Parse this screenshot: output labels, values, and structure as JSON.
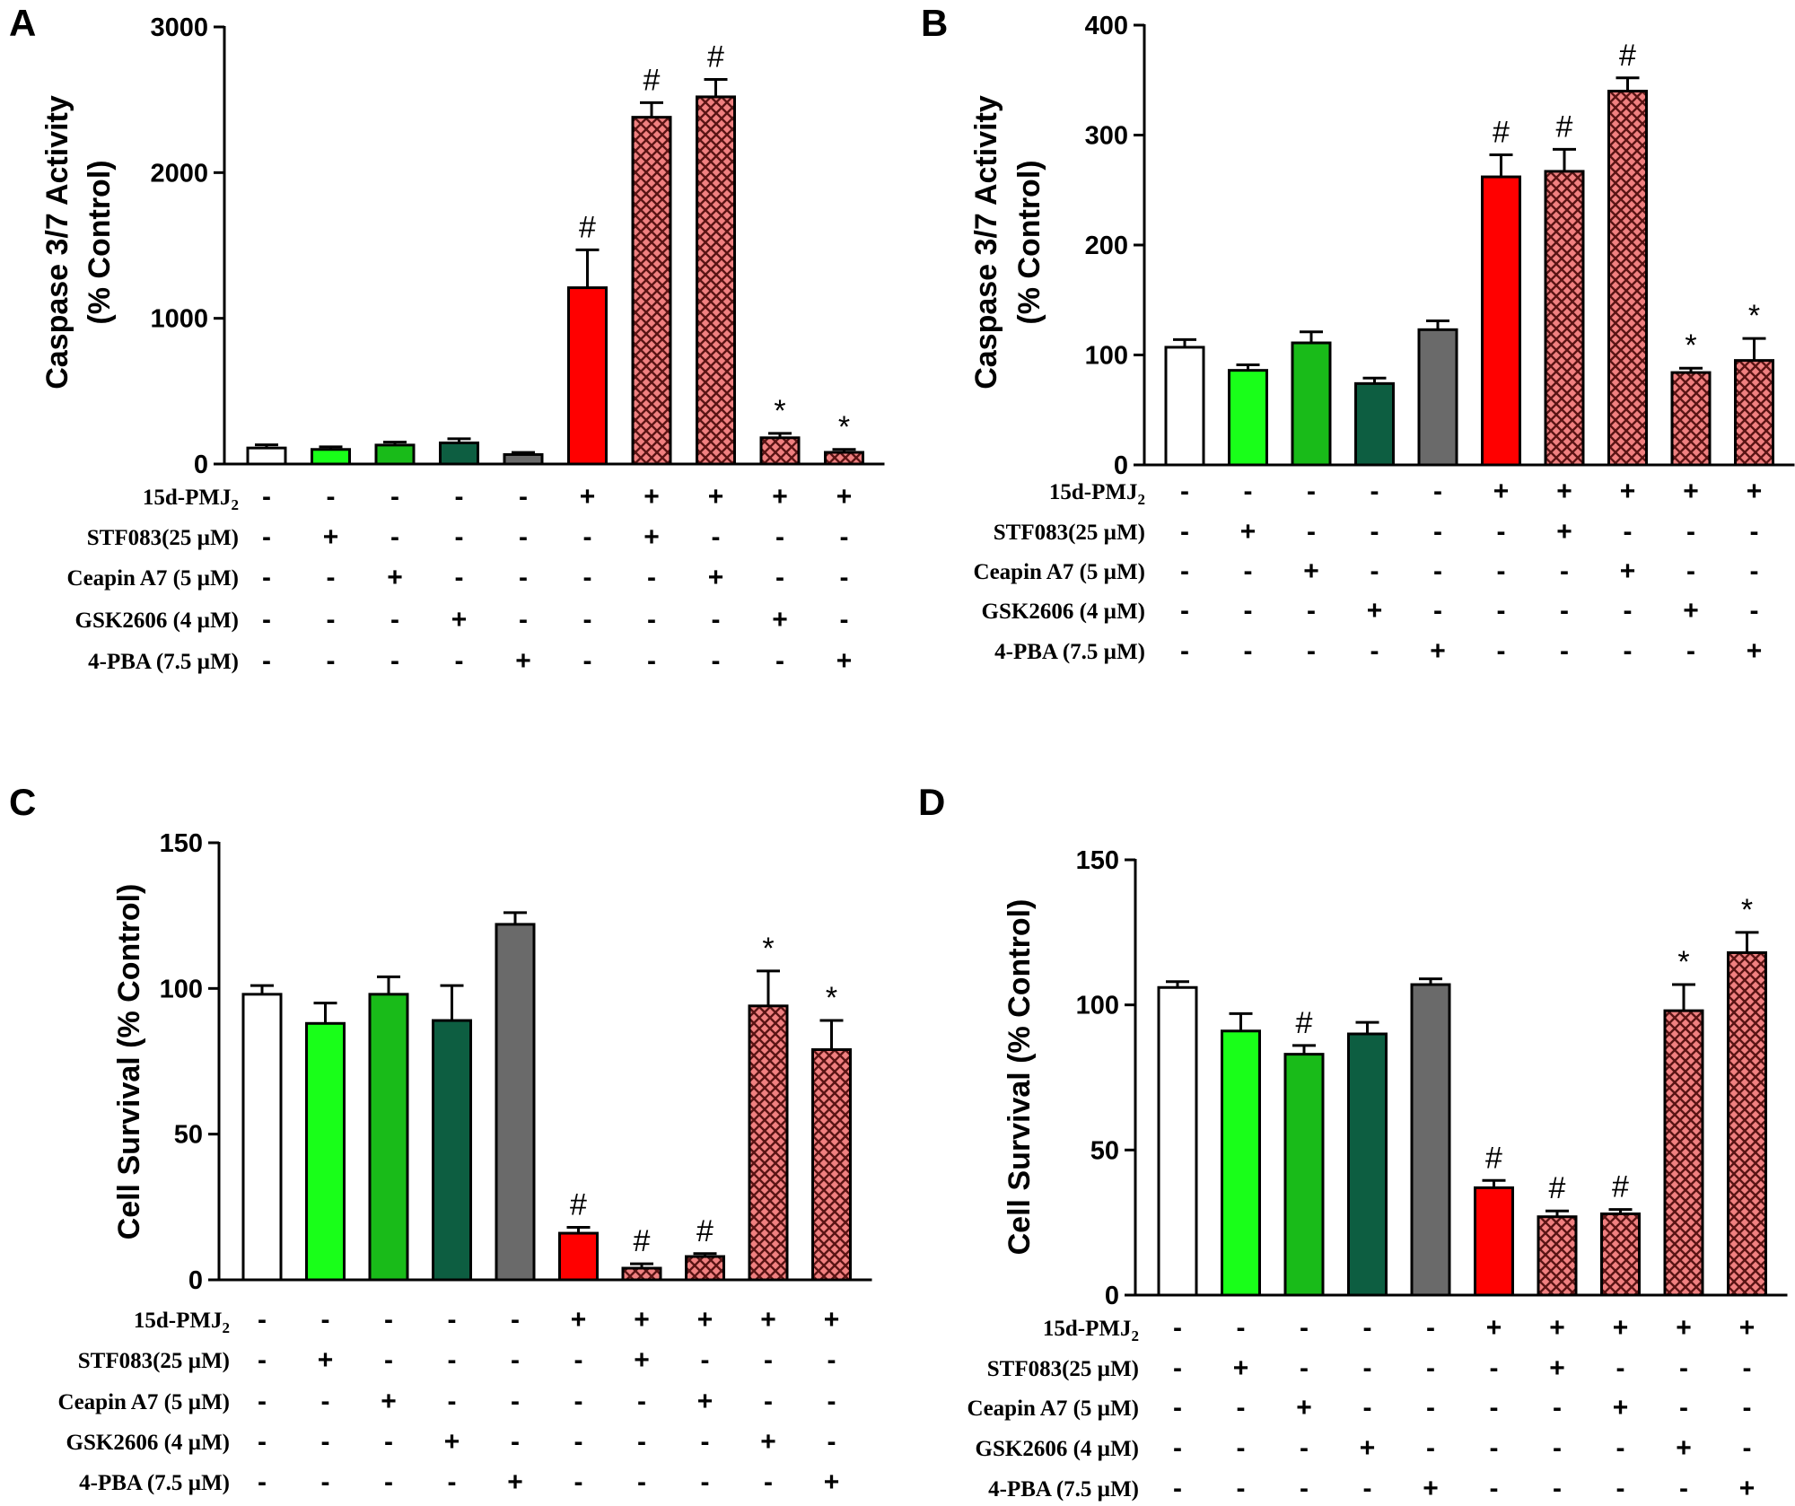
{
  "colors": {
    "white": "#ffffff",
    "light_green": "#19ff19",
    "green": "#19bb19",
    "dark_green": "#0d5e41",
    "gray": "#6a6a6a",
    "red": "#ff0000",
    "pink_hatch": "#f08080"
  },
  "treatments": {
    "labels": [
      {
        "main": "15d-PMJ",
        "sub": "2"
      },
      {
        "main": "STF083(25 µM)",
        "sub": ""
      },
      {
        "main": "Ceapin  A7 (5 µM)",
        "sub": ""
      },
      {
        "main": "GSK2606 (4 µM)",
        "sub": ""
      },
      {
        "main": "4-PBA (7.5 µM)",
        "sub": ""
      }
    ],
    "matrix": [
      [
        "-",
        "-",
        "-",
        "-",
        "-",
        "+",
        "+",
        "+",
        "+",
        "+"
      ],
      [
        "-",
        "+",
        "-",
        "-",
        "-",
        "-",
        "+",
        "-",
        "-",
        "-"
      ],
      [
        "-",
        "-",
        "+",
        "-",
        "-",
        "-",
        "-",
        "+",
        "-",
        "-"
      ],
      [
        "-",
        "-",
        "-",
        "+",
        "-",
        "-",
        "-",
        "-",
        "+",
        "-"
      ],
      [
        "-",
        "-",
        "-",
        "-",
        "+",
        "-",
        "-",
        "-",
        "-",
        "+"
      ]
    ]
  },
  "bar_styles": [
    "white",
    "light_green",
    "green",
    "dark_green",
    "gray",
    "red",
    "pink_hatch",
    "pink_hatch",
    "pink_hatch",
    "pink_hatch"
  ],
  "chart_data": [
    {
      "panel": "A",
      "type": "bar",
      "ylabel": [
        "Caspase 3/7 Activity",
        "(% Control)"
      ],
      "ylim": [
        0,
        3000
      ],
      "yticks": [
        0,
        1000,
        2000,
        3000
      ],
      "values": [
        110,
        100,
        130,
        145,
        65,
        1210,
        2380,
        2520,
        180,
        80
      ],
      "errors": [
        22,
        18,
        20,
        28,
        14,
        260,
        100,
        120,
        30,
        20
      ],
      "annotations": [
        "",
        "",
        "",
        "",
        "",
        "#",
        "#",
        "#",
        "*",
        "*"
      ]
    },
    {
      "panel": "B",
      "type": "bar",
      "ylabel": [
        "Caspase 3/7 Activity",
        "(% Control)"
      ],
      "ylim": [
        0,
        400
      ],
      "yticks": [
        0,
        100,
        200,
        300,
        400
      ],
      "values": [
        107,
        86,
        111,
        74,
        123,
        262,
        267,
        340,
        84,
        95
      ],
      "errors": [
        7,
        5,
        10,
        5,
        8,
        20,
        20,
        12,
        4,
        20
      ],
      "annotations": [
        "",
        "",
        "",
        "",
        "",
        "#",
        "#",
        "#",
        "*",
        "*"
      ]
    },
    {
      "panel": "C",
      "type": "bar",
      "ylabel": [
        "Cell Survival (% Control)"
      ],
      "ylim": [
        0,
        150
      ],
      "yticks": [
        0,
        50,
        100,
        150
      ],
      "values": [
        98,
        88,
        98,
        89,
        122,
        16,
        4,
        8,
        94,
        79
      ],
      "errors": [
        3,
        7,
        6,
        12,
        4,
        2,
        1.5,
        1,
        12,
        10
      ],
      "annotations": [
        "",
        "",
        "",
        "",
        "",
        "#",
        "#",
        "#",
        "*",
        "*"
      ]
    },
    {
      "panel": "D",
      "type": "bar",
      "ylabel": [
        "Cell Survival (% Control)"
      ],
      "ylim": [
        0,
        150
      ],
      "yticks": [
        0,
        50,
        100,
        150
      ],
      "values": [
        106,
        91,
        83,
        90,
        107,
        37,
        27,
        28,
        98,
        118
      ],
      "errors": [
        2,
        6,
        3,
        4,
        2,
        2.5,
        2,
        1.5,
        9,
        7
      ],
      "annotations": [
        "",
        "",
        "#",
        "",
        "",
        "#",
        "#",
        "#",
        "*",
        "*"
      ]
    }
  ]
}
